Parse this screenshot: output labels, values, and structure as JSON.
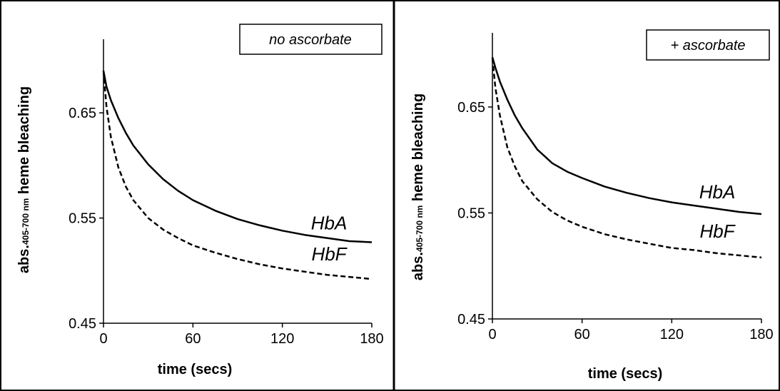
{
  "chart_data": [
    {
      "type": "line",
      "annotation": "no ascorbate",
      "xlabel": "time (secs)",
      "ylabel_main": "abs.",
      "ylabel_sub": "405-700 nm",
      "ylabel_tail": " heme bleaching",
      "xlim": [
        0,
        180
      ],
      "ylim": [
        0.45,
        0.72
      ],
      "xticks": [
        0,
        60,
        120,
        180
      ],
      "xtick_labels": [
        "0",
        "60",
        "120",
        "180"
      ],
      "yticks": [
        0.45,
        0.55,
        0.65
      ],
      "ytick_labels": [
        "0.45",
        "0.55",
        "0.65"
      ],
      "series": [
        {
          "name": "HbA",
          "style": "solid",
          "x": [
            0,
            2,
            5,
            10,
            15,
            20,
            30,
            40,
            50,
            60,
            75,
            90,
            105,
            120,
            135,
            150,
            165,
            180
          ],
          "y": [
            0.69,
            0.675,
            0.662,
            0.645,
            0.631,
            0.619,
            0.601,
            0.587,
            0.576,
            0.567,
            0.557,
            0.549,
            0.543,
            0.538,
            0.534,
            0.531,
            0.528,
            0.527
          ]
        },
        {
          "name": "HbF",
          "style": "dashed",
          "x": [
            0,
            2,
            5,
            10,
            15,
            20,
            30,
            40,
            50,
            60,
            75,
            90,
            105,
            120,
            135,
            150,
            165,
            180
          ],
          "y": [
            0.69,
            0.656,
            0.627,
            0.598,
            0.58,
            0.567,
            0.55,
            0.539,
            0.531,
            0.524,
            0.517,
            0.511,
            0.506,
            0.502,
            0.499,
            0.496,
            0.494,
            0.492
          ]
        }
      ]
    },
    {
      "type": "line",
      "annotation": "+ ascorbate",
      "xlabel": "time (secs)",
      "ylabel_main": "abs.",
      "ylabel_sub": "405-700 nm",
      "ylabel_tail": " heme bleaching",
      "xlim": [
        0,
        180
      ],
      "ylim": [
        0.45,
        0.72
      ],
      "xticks": [
        0,
        60,
        120,
        180
      ],
      "xtick_labels": [
        "0",
        "60",
        "120",
        "180"
      ],
      "yticks": [
        0.45,
        0.55,
        0.65
      ],
      "ytick_labels": [
        "0.45",
        "0.55",
        "0.65"
      ],
      "series": [
        {
          "name": "HbA",
          "style": "solid",
          "x": [
            0,
            2,
            5,
            10,
            15,
            20,
            30,
            40,
            50,
            60,
            75,
            90,
            105,
            120,
            135,
            150,
            165,
            180
          ],
          "y": [
            0.697,
            0.687,
            0.674,
            0.657,
            0.642,
            0.63,
            0.61,
            0.597,
            0.589,
            0.583,
            0.575,
            0.569,
            0.564,
            0.56,
            0.557,
            0.554,
            0.551,
            0.549
          ]
        },
        {
          "name": "HbF",
          "style": "dashed",
          "x": [
            0,
            2,
            5,
            10,
            15,
            20,
            30,
            40,
            50,
            60,
            75,
            90,
            105,
            120,
            135,
            150,
            165,
            180
          ],
          "y": [
            0.696,
            0.668,
            0.642,
            0.612,
            0.594,
            0.58,
            0.563,
            0.551,
            0.543,
            0.537,
            0.53,
            0.525,
            0.521,
            0.517,
            0.515,
            0.512,
            0.51,
            0.508
          ]
        }
      ]
    }
  ]
}
